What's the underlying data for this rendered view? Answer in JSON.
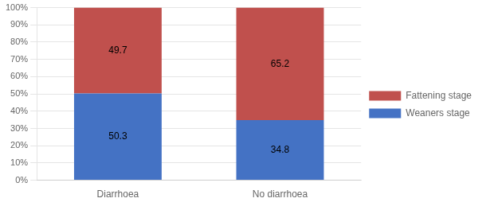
{
  "chart_data": {
    "type": "bar",
    "stacked": true,
    "categories": [
      "Diarrhoea",
      "No diarrhoea"
    ],
    "series": [
      {
        "name": "Weaners stage",
        "color": "#4472C4",
        "values": [
          50.3,
          34.8
        ]
      },
      {
        "name": "Fattening stage",
        "color": "#C0504D",
        "values": [
          49.7,
          65.2
        ]
      }
    ],
    "ylim": [
      0,
      100
    ],
    "yticks": [
      {
        "value": 0,
        "label": "0%"
      },
      {
        "value": 10,
        "label": "10%"
      },
      {
        "value": 20,
        "label": "20%"
      },
      {
        "value": 30,
        "label": "30%"
      },
      {
        "value": 40,
        "label": "40%"
      },
      {
        "value": 50,
        "label": "50%"
      },
      {
        "value": 60,
        "label": "60%"
      },
      {
        "value": 70,
        "label": "70%"
      },
      {
        "value": 80,
        "label": "80%"
      },
      {
        "value": 90,
        "label": "90%"
      },
      {
        "value": 100,
        "label": "100%"
      }
    ],
    "grid": true,
    "data_labels": true,
    "legend": "right"
  }
}
